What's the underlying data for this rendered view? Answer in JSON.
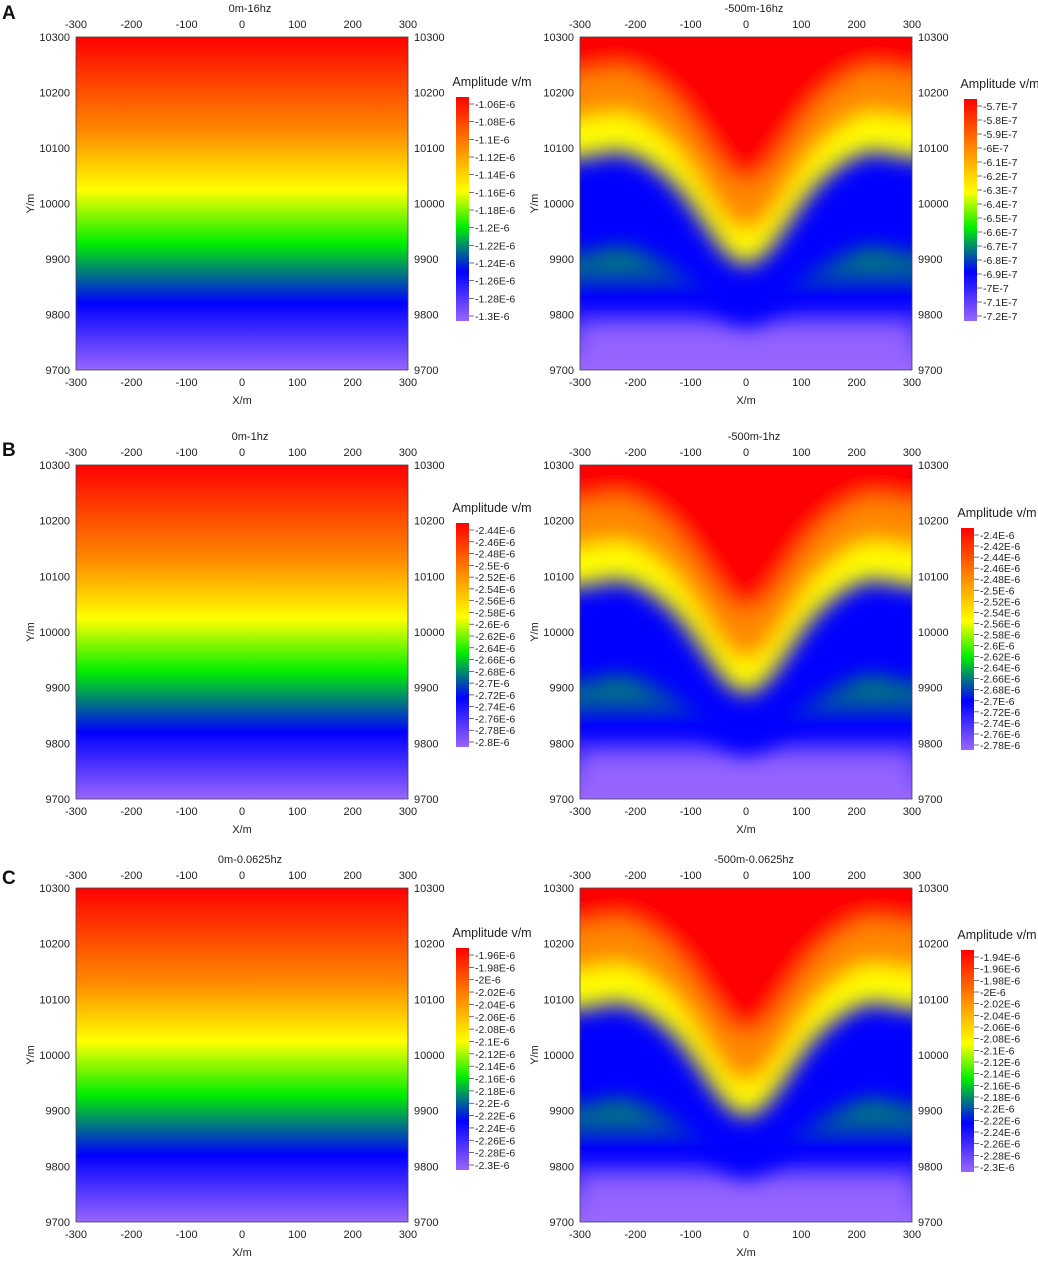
{
  "chart_data": [
    {
      "type": "heatmap",
      "panel_label": "A",
      "title": "0m-16hz",
      "xlabel": "X/m",
      "ylabel": "Y/m",
      "xlim": [
        -300,
        300
      ],
      "ylim": [
        9700,
        10300
      ],
      "xticks": [
        -300,
        -200,
        -100,
        0,
        100,
        200,
        300
      ],
      "yticks": [
        9700,
        9800,
        9900,
        10000,
        10100,
        10200,
        10300
      ],
      "colorbar": {
        "title": "Amplitude v/m",
        "labels": [
          "-1.06E-6",
          "-1.08E-6",
          "-1.1E-6",
          "-1.12E-6",
          "-1.14E-6",
          "-1.16E-6",
          "-1.18E-6",
          "-1.2E-6",
          "-1.22E-6",
          "-1.24E-6",
          "-1.26E-6",
          "-1.28E-6",
          "-1.3E-6"
        ],
        "colors": [
          "#ff0000",
          "#ff8800",
          "#ffff00",
          "#00ee00",
          "#0000ff",
          "#9966ff"
        ]
      },
      "pattern": "flat"
    },
    {
      "type": "heatmap",
      "panel_label": "",
      "title": "-500m-16hz",
      "xlabel": "X/m",
      "ylabel": "Y/m",
      "xlim": [
        -300,
        300
      ],
      "ylim": [
        9700,
        10300
      ],
      "xticks": [
        -300,
        -200,
        -100,
        0,
        100,
        200,
        300
      ],
      "yticks": [
        9700,
        9800,
        9900,
        10000,
        10100,
        10200,
        10300
      ],
      "colorbar": {
        "title": "Amplitude v/m",
        "labels": [
          "-5.7E-7",
          "-5.8E-7",
          "-5.9E-7",
          "-6E-7",
          "-6.1E-7",
          "-6.2E-7",
          "-6.3E-7",
          "-6.4E-7",
          "-6.5E-7",
          "-6.6E-7",
          "-6.7E-7",
          "-6.8E-7",
          "-6.9E-7",
          "-7E-7",
          "-7.1E-7",
          "-7.2E-7"
        ],
        "colors": [
          "#ff0000",
          "#ff8800",
          "#ffff00",
          "#00ee00",
          "#0000ff",
          "#9966ff"
        ]
      },
      "pattern": "dip"
    },
    {
      "type": "heatmap",
      "panel_label": "B",
      "title": "0m-1hz",
      "xlabel": "X/m",
      "ylabel": "Y/m",
      "xlim": [
        -300,
        300
      ],
      "ylim": [
        9700,
        10300
      ],
      "xticks": [
        -300,
        -200,
        -100,
        0,
        100,
        200,
        300
      ],
      "yticks": [
        9700,
        9800,
        9900,
        10000,
        10100,
        10200,
        10300
      ],
      "colorbar": {
        "title": "Amplitude v/m",
        "labels": [
          "-2.44E-6",
          "-2.46E-6",
          "-2.48E-6",
          "-2.5E-6",
          "-2.52E-6",
          "-2.54E-6",
          "-2.56E-6",
          "-2.58E-6",
          "-2.6E-6",
          "-2.62E-6",
          "-2.64E-6",
          "-2.66E-6",
          "-2.68E-6",
          "-2.7E-6",
          "-2.72E-6",
          "-2.74E-6",
          "-2.76E-6",
          "-2.78E-6",
          "-2.8E-6"
        ],
        "colors": [
          "#ff0000",
          "#ff8800",
          "#ffff00",
          "#00ee00",
          "#0000ff",
          "#9966ff"
        ]
      },
      "pattern": "flat"
    },
    {
      "type": "heatmap",
      "panel_label": "",
      "title": "-500m-1hz",
      "xlabel": "X/m",
      "ylabel": "Y/m",
      "xlim": [
        -300,
        300
      ],
      "ylim": [
        9700,
        10300
      ],
      "xticks": [
        -300,
        -200,
        -100,
        0,
        100,
        200,
        300
      ],
      "yticks": [
        9700,
        9800,
        9900,
        10000,
        10100,
        10200,
        10300
      ],
      "colorbar": {
        "title": "Amplitude v/m",
        "labels": [
          "-2.4E-6",
          "-2.42E-6",
          "-2.44E-6",
          "-2.46E-6",
          "-2.48E-6",
          "-2.5E-6",
          "-2.52E-6",
          "-2.54E-6",
          "-2.56E-6",
          "-2.58E-6",
          "-2.6E-6",
          "-2.62E-6",
          "-2.64E-6",
          "-2.66E-6",
          "-2.68E-6",
          "-2.7E-6",
          "-2.72E-6",
          "-2.74E-6",
          "-2.76E-6",
          "-2.78E-6"
        ],
        "colors": [
          "#ff0000",
          "#ff8800",
          "#ffff00",
          "#00ee00",
          "#0000ff",
          "#9966ff"
        ]
      },
      "pattern": "dip"
    },
    {
      "type": "heatmap",
      "panel_label": "C",
      "title": "0m-0.0625hz",
      "xlabel": "X/m",
      "ylabel": "Y/m",
      "xlim": [
        -300,
        300
      ],
      "ylim": [
        9700,
        10300
      ],
      "xticks": [
        -300,
        -200,
        -100,
        0,
        100,
        200,
        300
      ],
      "yticks": [
        9700,
        9800,
        9900,
        10000,
        10100,
        10200,
        10300
      ],
      "colorbar": {
        "title": "Amplitude v/m",
        "labels": [
          "-1.96E-6",
          "-1.98E-6",
          "-2E-6",
          "-2.02E-6",
          "-2.04E-6",
          "-2.06E-6",
          "-2.08E-6",
          "-2.1E-6",
          "-2.12E-6",
          "-2.14E-6",
          "-2.16E-6",
          "-2.18E-6",
          "-2.2E-6",
          "-2.22E-6",
          "-2.24E-6",
          "-2.26E-6",
          "-2.28E-6",
          "-2.3E-6"
        ],
        "colors": [
          "#ff0000",
          "#ff8800",
          "#ffff00",
          "#00ee00",
          "#0000ff",
          "#9966ff"
        ]
      },
      "pattern": "flat"
    },
    {
      "type": "heatmap",
      "panel_label": "",
      "title": "-500m-0.0625hz",
      "xlabel": "X/m",
      "ylabel": "Y/m",
      "xlim": [
        -300,
        300
      ],
      "ylim": [
        9700,
        10300
      ],
      "xticks": [
        -300,
        -200,
        -100,
        0,
        100,
        200,
        300
      ],
      "yticks": [
        9700,
        9800,
        9900,
        10000,
        10100,
        10200,
        10300
      ],
      "colorbar": {
        "title": "Amplitude v/m",
        "labels": [
          "-1.94E-6",
          "-1.96E-6",
          "-1.98E-6",
          "-2E-6",
          "-2.02E-6",
          "-2.04E-6",
          "-2.06E-6",
          "-2.08E-6",
          "-2.1E-6",
          "-2.12E-6",
          "-2.14E-6",
          "-2.16E-6",
          "-2.18E-6",
          "-2.2E-6",
          "-2.22E-6",
          "-2.24E-6",
          "-2.26E-6",
          "-2.28E-6",
          "-2.3E-6"
        ],
        "colors": [
          "#ff0000",
          "#ff8800",
          "#ffff00",
          "#00ee00",
          "#0000ff",
          "#9966ff"
        ]
      },
      "pattern": "dip"
    }
  ]
}
